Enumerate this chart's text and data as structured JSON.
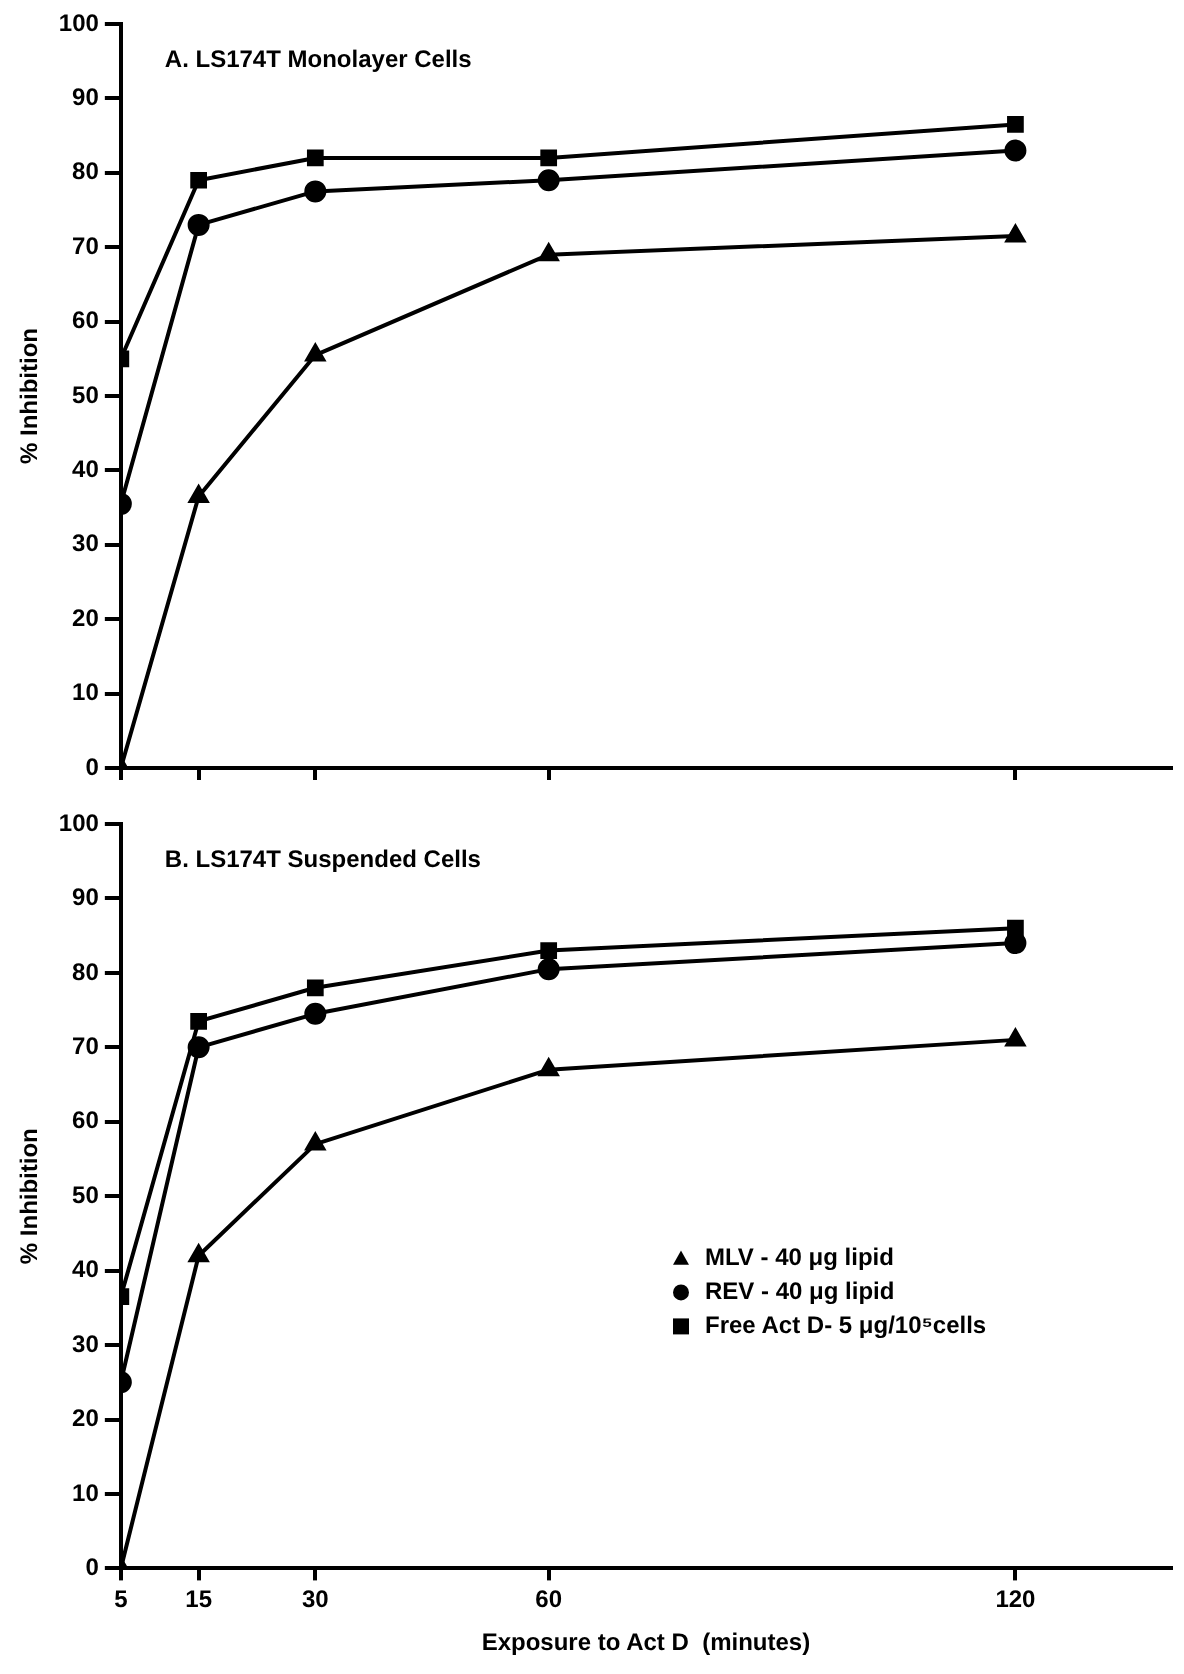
{
  "chart_data": [
    {
      "type": "line",
      "title": "A. LS174T Monolayer Cells",
      "ylabel": "% Inhibition",
      "x": [
        5,
        15,
        30,
        60,
        120
      ],
      "xlim": [
        5,
        140
      ],
      "xticks": [
        5,
        15,
        30,
        60,
        120
      ],
      "ylim": [
        0,
        100
      ],
      "yticks": [
        0,
        10,
        20,
        30,
        40,
        50,
        60,
        70,
        80,
        90,
        100
      ],
      "tick_labels": "y",
      "grid": false,
      "legend": false,
      "series": [
        {
          "color": "#000000",
          "marker": "triangle",
          "values": [
            0,
            36.5,
            55.5,
            69,
            71.5
          ]
        },
        {
          "color": "#000000",
          "marker": "circle",
          "values": [
            35.5,
            73,
            77.5,
            79,
            83
          ]
        },
        {
          "color": "#000000",
          "marker": "square",
          "values": [
            55,
            79,
            82,
            82,
            86.5
          ]
        }
      ]
    },
    {
      "type": "line",
      "title": "B. LS174T Suspended Cells",
      "ylabel": "% Inhibition",
      "xlabel": "Exposure to Act D  (minutes)",
      "x": [
        5,
        15,
        30,
        60,
        120
      ],
      "xlim": [
        5,
        140
      ],
      "xticks": [
        5,
        15,
        30,
        60,
        120
      ],
      "ylim": [
        0,
        100
      ],
      "yticks": [
        0,
        10,
        20,
        30,
        40,
        50,
        60,
        70,
        80,
        90,
        100
      ],
      "grid": false,
      "legend": "bottom right",
      "series": [
        {
          "name": "MLV - 40 μg lipid",
          "color": "#000000",
          "marker": "triangle",
          "values": [
            0,
            42,
            57,
            67,
            71
          ]
        },
        {
          "name": "REV - 40 μg lipid",
          "color": "#000000",
          "marker": "circle",
          "values": [
            25,
            70,
            74.5,
            80.5,
            84
          ]
        },
        {
          "name": "Free Act D- 5 μg/10⁵cells",
          "color": "#000000",
          "marker": "square",
          "values": [
            36.5,
            73.5,
            78,
            83,
            86
          ]
        }
      ]
    }
  ]
}
